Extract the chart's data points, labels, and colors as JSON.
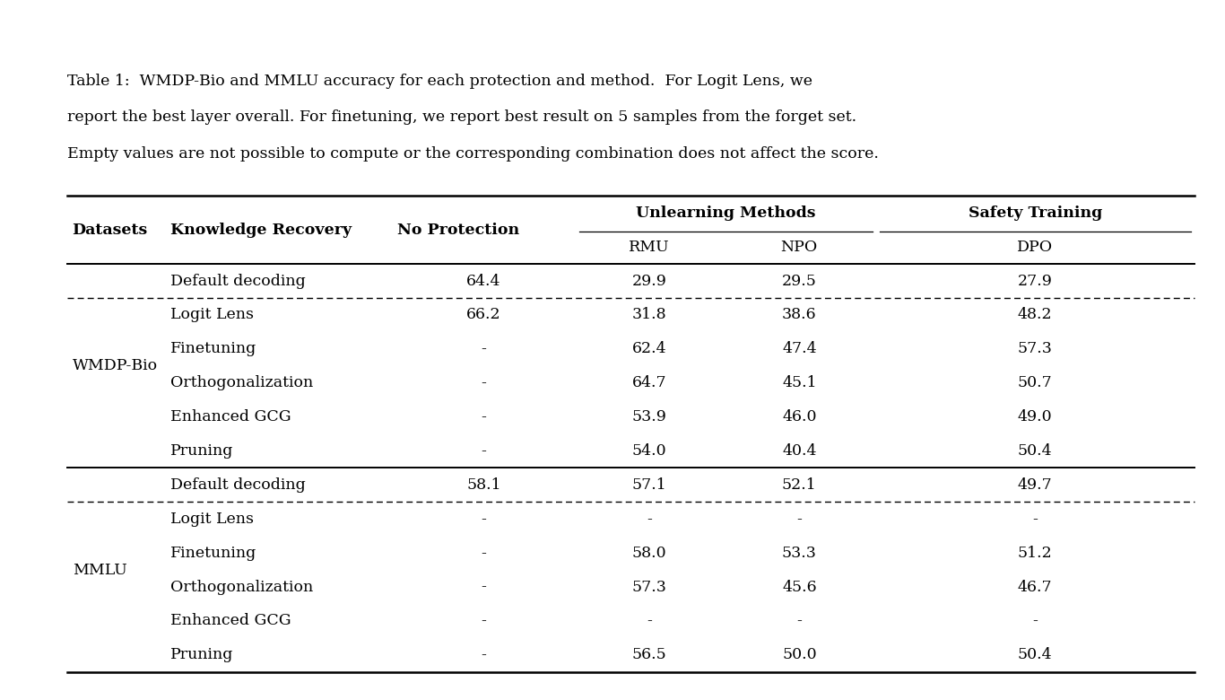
{
  "caption_parts": [
    "Table 1:  WMDP-Bio and MMLU accuracy for each protection and method.  For Logit Lens, we",
    "report the best layer overall. For finetuning, we report best result on 5 samples from the forget set.",
    "Empty values are not possible to compute or the corresponding combination does not affect the score."
  ],
  "rows": [
    {
      "dataset": "WMDP-Bio",
      "method": "Default decoding",
      "no_prot": "64.4",
      "rmu": "29.9",
      "npo": "29.5",
      "dpo": "27.9",
      "dashed_after": true,
      "solid_before": false
    },
    {
      "dataset": "",
      "method": "Logit Lens",
      "no_prot": "66.2",
      "rmu": "31.8",
      "npo": "38.6",
      "dpo": "48.2",
      "dashed_after": false,
      "solid_before": false
    },
    {
      "dataset": "",
      "method": "Finetuning",
      "no_prot": "-",
      "rmu": "62.4",
      "npo": "47.4",
      "dpo": "57.3",
      "dashed_after": false,
      "solid_before": false
    },
    {
      "dataset": "",
      "method": "Orthogonalization",
      "no_prot": "-",
      "rmu": "64.7",
      "npo": "45.1",
      "dpo": "50.7",
      "dashed_after": false,
      "solid_before": false
    },
    {
      "dataset": "",
      "method": "Enhanced GCG",
      "no_prot": "-",
      "rmu": "53.9",
      "npo": "46.0",
      "dpo": "49.0",
      "dashed_after": false,
      "solid_before": false
    },
    {
      "dataset": "",
      "method": "Pruning",
      "no_prot": "-",
      "rmu": "54.0",
      "npo": "40.4",
      "dpo": "50.4",
      "dashed_after": false,
      "solid_before": false
    },
    {
      "dataset": "MMLU",
      "method": "Default decoding",
      "no_prot": "58.1",
      "rmu": "57.1",
      "npo": "52.1",
      "dpo": "49.7",
      "dashed_after": true,
      "solid_before": true
    },
    {
      "dataset": "",
      "method": "Logit Lens",
      "no_prot": "-",
      "rmu": "-",
      "npo": "-",
      "dpo": "-",
      "dashed_after": false,
      "solid_before": false
    },
    {
      "dataset": "",
      "method": "Finetuning",
      "no_prot": "-",
      "rmu": "58.0",
      "npo": "53.3",
      "dpo": "51.2",
      "dashed_after": false,
      "solid_before": false
    },
    {
      "dataset": "",
      "method": "Orthogonalization",
      "no_prot": "-",
      "rmu": "57.3",
      "npo": "45.6",
      "dpo": "46.7",
      "dashed_after": false,
      "solid_before": false
    },
    {
      "dataset": "",
      "method": "Enhanced GCG",
      "no_prot": "-",
      "rmu": "-",
      "npo": "-",
      "dpo": "-",
      "dashed_after": false,
      "solid_before": false
    },
    {
      "dataset": "",
      "method": "Pruning",
      "no_prot": "-",
      "rmu": "56.5",
      "npo": "50.0",
      "dpo": "50.4",
      "dashed_after": false,
      "solid_before": false
    }
  ],
  "bg_color": "#ffffff",
  "text_color": "#000000",
  "font_size": 12.5,
  "caption_font_size": 12.5
}
